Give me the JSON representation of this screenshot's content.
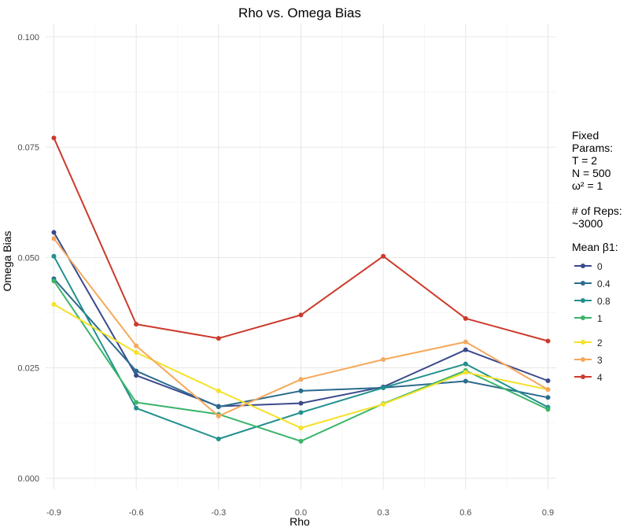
{
  "chart_data": {
    "type": "line",
    "title": "Rho vs. Omega Bias",
    "xlabel": "Rho",
    "ylabel": "Omega Bias",
    "x": [
      -0.9,
      -0.6,
      -0.3,
      0.0,
      0.3,
      0.6,
      0.9
    ],
    "x_ticks": [
      "-0.9",
      "-0.6",
      "-0.3",
      "0.0",
      "0.3",
      "0.6",
      "0.9"
    ],
    "y_ticks": [
      "0.000",
      "0.025",
      "0.050",
      "0.075",
      "0.100"
    ],
    "ylim": [
      -0.0025,
      0.103
    ],
    "xlim": [
      -0.93,
      0.93
    ],
    "grid": true,
    "legend_position": "right",
    "series": [
      {
        "name": "0",
        "color": "#3b4a8c",
        "values": [
          0.0557,
          0.0233,
          0.0163,
          0.017,
          0.0207,
          0.0291,
          0.0221
        ]
      },
      {
        "name": "0.4",
        "color": "#2b6b8e",
        "values": [
          0.0452,
          0.0243,
          0.0162,
          0.0198,
          0.0205,
          0.022,
          0.0183
        ]
      },
      {
        "name": "0.8",
        "color": "#21908d",
        "values": [
          0.0503,
          0.0159,
          0.0089,
          0.0149,
          0.0205,
          0.0259,
          0.0161
        ]
      },
      {
        "name": "1",
        "color": "#3bb56a",
        "values": [
          0.0447,
          0.0172,
          0.0145,
          0.0084,
          0.0169,
          0.0244,
          0.0156
        ]
      },
      {
        "name": "2",
        "color": "#f5e12a",
        "values": [
          0.0394,
          0.0285,
          0.0198,
          0.0114,
          0.0168,
          0.024,
          0.0201
        ]
      },
      {
        "name": "3",
        "color": "#f5a85a",
        "values": [
          0.0543,
          0.03,
          0.0141,
          0.0224,
          0.0269,
          0.0309,
          0.0201
        ]
      },
      {
        "name": "4",
        "color": "#cc3a2c",
        "values": [
          0.0771,
          0.0349,
          0.0317,
          0.037,
          0.0503,
          0.0362,
          0.0311
        ]
      }
    ]
  },
  "legend": {
    "info_text": "Fixed\nParams:\nT = 2\nN = 500\nω² = 1\n\n# of Reps:\n~3000",
    "title": "Mean β1:"
  }
}
